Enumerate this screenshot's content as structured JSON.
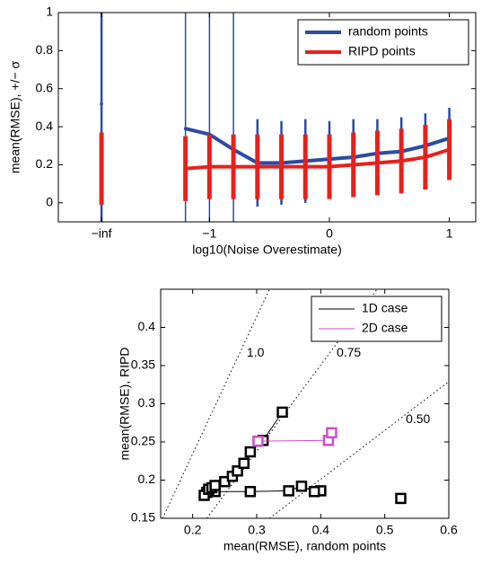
{
  "chart_data": [
    {
      "type": "errorbar",
      "xlabel": "log10(Noise Overestimate)",
      "ylabel": "mean(RMSE), +/− σ",
      "x": [
        -1.9,
        -1.2,
        -1.0,
        -0.8,
        -0.6,
        -0.4,
        -0.2,
        0,
        0.2,
        0.4,
        0.6,
        0.8,
        1.0
      ],
      "series": [
        {
          "name": "random points",
          "color": "#2b4ba3",
          "values": [
            0.52,
            0.39,
            0.36,
            0.28,
            0.21,
            0.21,
            0.22,
            0.23,
            0.24,
            0.26,
            0.27,
            0.3,
            0.34
          ],
          "errors": [
            1.5,
            1.5,
            1.5,
            1.5,
            0.23,
            0.22,
            0.22,
            0.2,
            0.2,
            0.18,
            0.18,
            0.17,
            0.16
          ]
        },
        {
          "name": "RIPD points",
          "color": "#e8201c",
          "values": [
            0.18,
            0.18,
            0.19,
            0.19,
            0.19,
            0.19,
            0.19,
            0.19,
            0.2,
            0.21,
            0.22,
            0.24,
            0.28
          ],
          "errors": [
            0.19,
            0.17,
            0.17,
            0.17,
            0.17,
            0.17,
            0.17,
            0.17,
            0.17,
            0.17,
            0.17,
            0.17,
            0.16
          ]
        }
      ],
      "xlim": [
        -2.26,
        1.22
      ],
      "ylim": [
        -0.1,
        1
      ],
      "xticks": [
        {
          "value": -1.9,
          "label": "−inf"
        },
        {
          "value": -1,
          "label": "−1"
        },
        0,
        1
      ],
      "yticks": [
        0,
        0.2,
        0.4,
        0.6,
        0.8,
        1
      ],
      "legend": "upper right"
    },
    {
      "type": "scatter",
      "xlabel": "mean(RMSE), random points",
      "ylabel": "mean(RMSE), RIPD",
      "series": [
        {
          "name": "1D case",
          "color": "#000000",
          "x": [
            0.525,
            null,
            0.4,
            0.39,
            0.37,
            0.35,
            0.29,
            0.235,
            0.222,
            0.218,
            0.225,
            0.23,
            0.235,
            0.25,
            0.262,
            0.27,
            0.28,
            0.29,
            0.31,
            0.34
          ],
          "values": [
            0.176,
            null,
            0.186,
            0.185,
            0.192,
            0.186,
            0.185,
            0.185,
            0.184,
            0.18,
            0.188,
            0.19,
            0.193,
            0.198,
            0.205,
            0.212,
            0.222,
            0.237,
            0.252,
            0.289
          ]
        },
        {
          "name": "2D case",
          "color": "#cc4fcc",
          "x": [
            0.302,
            0.412,
            0.417
          ],
          "values": [
            0.251,
            0.252,
            0.262
          ]
        }
      ],
      "reference_lines": [
        {
          "label": "1.0",
          "x": [
            0.153,
            0.32
          ],
          "y": [
            0.15,
            0.45
          ]
        },
        {
          "label": "0.75",
          "x": [
            0.222,
            0.488
          ],
          "y": [
            0.15,
            0.45
          ]
        },
        {
          "label": "0.50",
          "x": [
            0.32,
            0.6
          ],
          "y": [
            0.15,
            0.329
          ]
        }
      ],
      "xlim": [
        0.15,
        0.6
      ],
      "ylim": [
        0.15,
        0.45
      ],
      "xticks": [
        0.2,
        0.3,
        0.4,
        0.5,
        0.6
      ],
      "yticks": [
        0.15,
        0.2,
        0.25,
        0.3,
        0.35,
        0.4
      ],
      "legend": "upper right"
    }
  ]
}
